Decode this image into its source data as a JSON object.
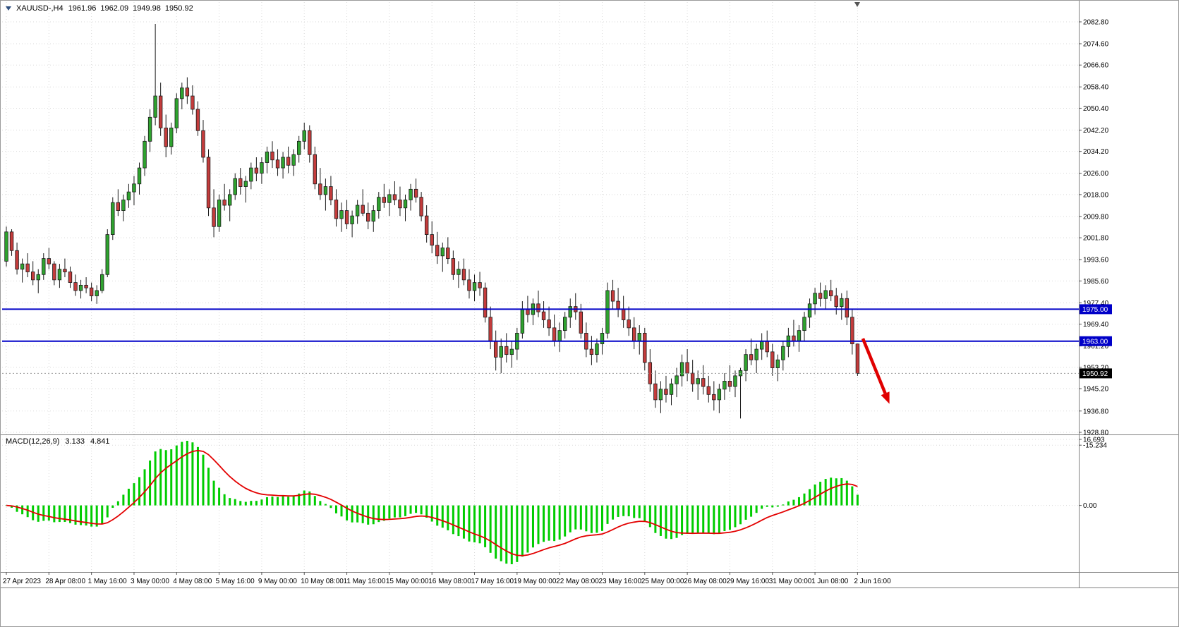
{
  "header": {
    "symbol": "XAUUSD-,H4",
    "open": "1961.96",
    "high": "1962.09",
    "low": "1949.98",
    "close": "1950.92"
  },
  "macd_header": {
    "label": "MACD(12,26,9)",
    "macd_value": "3.133",
    "signal_value": "4.841"
  },
  "colors": {
    "bull": "#2FA32F",
    "bear": "#C43C3C",
    "candle_outline": "#1A1A1A",
    "grid": "#D9D9D9",
    "hline": "#0000C8",
    "macd_histogram": "#00CC00",
    "macd_signal": "#E30000",
    "arrow": "#E00000",
    "last_price_bg": "#000000",
    "axis_text": "#000000",
    "separator": "#808080"
  },
  "chart_data": {
    "type": "candlestick",
    "symbol": "XAUUSD-",
    "timeframe": "H4",
    "title": "XAUUSD-,H4 1961.96 1962.09 1949.98 1950.92",
    "price_axis": {
      "labels": [
        "2082.80",
        "2074.60",
        "2066.60",
        "2058.40",
        "2050.40",
        "2042.20",
        "2034.20",
        "2026.00",
        "2018.00",
        "2009.80",
        "2001.80",
        "1993.60",
        "1985.60",
        "1977.40",
        "1969.40",
        "1961.20",
        "1953.20",
        "1945.20",
        "1936.80",
        "1928.80"
      ],
      "top_value": 2082.8,
      "bottom_value": 1928.8
    },
    "time_axis": {
      "labels": [
        "27 Apr 2023",
        "28 Apr 08:00",
        "1 May 16:00",
        "3 May 00:00",
        "4 May 08:00",
        "5 May 16:00",
        "9 May 00:00",
        "10 May 08:00",
        "11 May 16:00",
        "15 May 00:00",
        "16 May 08:00",
        "17 May 16:00",
        "19 May 00:00",
        "22 May 08:00",
        "23 May 16:00",
        "25 May 00:00",
        "26 May 08:00",
        "29 May 16:00",
        "31 May 00:00",
        "1 Jun 08:00",
        "2 Jun 16:00"
      ],
      "bars_per_label": 8
    },
    "horizontal_lines": [
      {
        "price": 1975.0,
        "label": "1975.00"
      },
      {
        "price": 1963.0,
        "label": "1963.00"
      }
    ],
    "last_price": {
      "value": 1950.92,
      "label": "1950.92"
    },
    "arrow_annotation": {
      "from_bar": 161,
      "from_price": 1964.0,
      "to_bar": 166,
      "to_price": 1939.5
    },
    "candles": [
      [
        1993,
        2006,
        1991,
        2004
      ],
      [
        2004,
        2005,
        1995,
        1997
      ],
      [
        1997,
        2000,
        1988,
        1990
      ],
      [
        1990,
        1994,
        1985,
        1992
      ],
      [
        1992,
        1996,
        1987,
        1989
      ],
      [
        1989,
        1993,
        1984,
        1986
      ],
      [
        1986,
        1990,
        1981,
        1988
      ],
      [
        1988,
        1996,
        1986,
        1994
      ],
      [
        1994,
        1998,
        1990,
        1992
      ],
      [
        1992,
        1993,
        1984,
        1986
      ],
      [
        1986,
        1992,
        1983,
        1990
      ],
      [
        1990,
        1994,
        1987,
        1989
      ],
      [
        1989,
        1991,
        1983,
        1985
      ],
      [
        1985,
        1988,
        1980,
        1982
      ],
      [
        1982,
        1986,
        1979,
        1984
      ],
      [
        1984,
        1987,
        1981,
        1983
      ],
      [
        1983,
        1985,
        1978,
        1980
      ],
      [
        1980,
        1984,
        1977,
        1982
      ],
      [
        1982,
        1990,
        1981,
        1988
      ],
      [
        1988,
        2005,
        1987,
        2003
      ],
      [
        2003,
        2017,
        2001,
        2015
      ],
      [
        2015,
        2020,
        2010,
        2012
      ],
      [
        2012,
        2018,
        2008,
        2016
      ],
      [
        2016,
        2022,
        2013,
        2019
      ],
      [
        2019,
        2025,
        2014,
        2022
      ],
      [
        2022,
        2030,
        2018,
        2028
      ],
      [
        2028,
        2040,
        2025,
        2038
      ],
      [
        2038,
        2050,
        2034,
        2047
      ],
      [
        2047,
        2082,
        2044,
        2055
      ],
      [
        2055,
        2060,
        2040,
        2043
      ],
      [
        2043,
        2048,
        2032,
        2036
      ],
      [
        2036,
        2045,
        2033,
        2043
      ],
      [
        2043,
        2056,
        2041,
        2054
      ],
      [
        2054,
        2060,
        2050,
        2058
      ],
      [
        2058,
        2062,
        2052,
        2055
      ],
      [
        2055,
        2059,
        2048,
        2050
      ],
      [
        2050,
        2053,
        2040,
        2042
      ],
      [
        2042,
        2046,
        2030,
        2032
      ],
      [
        2032,
        2035,
        2010,
        2013
      ],
      [
        2013,
        2020,
        2002,
        2006
      ],
      [
        2006,
        2018,
        2004,
        2016
      ],
      [
        2016,
        2022,
        2012,
        2014
      ],
      [
        2014,
        2020,
        2008,
        2018
      ],
      [
        2018,
        2026,
        2016,
        2024
      ],
      [
        2024,
        2028,
        2018,
        2021
      ],
      [
        2021,
        2025,
        2015,
        2023
      ],
      [
        2023,
        2030,
        2020,
        2028
      ],
      [
        2028,
        2032,
        2023,
        2026
      ],
      [
        2026,
        2032,
        2022,
        2030
      ],
      [
        2030,
        2036,
        2026,
        2034
      ],
      [
        2034,
        2038,
        2028,
        2031
      ],
      [
        2031,
        2035,
        2025,
        2028
      ],
      [
        2028,
        2034,
        2024,
        2032
      ],
      [
        2032,
        2036,
        2026,
        2029
      ],
      [
        2029,
        2035,
        2025,
        2033
      ],
      [
        2033,
        2040,
        2030,
        2038
      ],
      [
        2038,
        2045,
        2035,
        2042
      ],
      [
        2042,
        2044,
        2030,
        2033
      ],
      [
        2033,
        2036,
        2020,
        2022
      ],
      [
        2022,
        2028,
        2016,
        2018
      ],
      [
        2018,
        2024,
        2012,
        2021
      ],
      [
        2021,
        2025,
        2014,
        2016
      ],
      [
        2016,
        2020,
        2006,
        2009
      ],
      [
        2009,
        2015,
        2004,
        2012
      ],
      [
        2012,
        2016,
        2005,
        2007
      ],
      [
        2007,
        2012,
        2002,
        2010
      ],
      [
        2010,
        2016,
        2007,
        2014
      ],
      [
        2014,
        2020,
        2010,
        2011
      ],
      [
        2011,
        2015,
        2005,
        2008
      ],
      [
        2008,
        2014,
        2004,
        2012
      ],
      [
        2012,
        2019,
        2009,
        2017
      ],
      [
        2017,
        2022,
        2013,
        2015
      ],
      [
        2015,
        2020,
        2010,
        2018
      ],
      [
        2018,
        2023,
        2014,
        2016
      ],
      [
        2016,
        2021,
        2010,
        2013
      ],
      [
        2013,
        2018,
        2008,
        2016
      ],
      [
        2016,
        2022,
        2012,
        2020
      ],
      [
        2020,
        2024,
        2015,
        2017
      ],
      [
        2017,
        2019,
        2008,
        2010
      ],
      [
        2010,
        2014,
        2000,
        2003
      ],
      [
        2003,
        2008,
        1996,
        1999
      ],
      [
        1999,
        2004,
        1992,
        1995
      ],
      [
        1995,
        2000,
        1989,
        1998
      ],
      [
        1998,
        2002,
        1992,
        1994
      ],
      [
        1994,
        1997,
        1986,
        1988
      ],
      [
        1988,
        1993,
        1983,
        1990
      ],
      [
        1990,
        1994,
        1984,
        1986
      ],
      [
        1986,
        1990,
        1979,
        1982
      ],
      [
        1982,
        1988,
        1978,
        1985
      ],
      [
        1985,
        1989,
        1980,
        1983
      ],
      [
        1983,
        1985,
        1970,
        1972
      ],
      [
        1972,
        1976,
        1960,
        1963
      ],
      [
        1963,
        1967,
        1952,
        1957
      ],
      [
        1957,
        1964,
        1951,
        1961
      ],
      [
        1961,
        1966,
        1955,
        1958
      ],
      [
        1958,
        1963,
        1953,
        1960
      ],
      [
        1960,
        1968,
        1956,
        1966
      ],
      [
        1966,
        1978,
        1964,
        1975
      ],
      [
        1975,
        1980,
        1970,
        1973
      ],
      [
        1973,
        1979,
        1969,
        1977
      ],
      [
        1977,
        1982,
        1972,
        1974
      ],
      [
        1974,
        1978,
        1968,
        1971
      ],
      [
        1971,
        1976,
        1965,
        1968
      ],
      [
        1968,
        1973,
        1961,
        1963
      ],
      [
        1963,
        1970,
        1959,
        1967
      ],
      [
        1967,
        1974,
        1964,
        1972
      ],
      [
        1972,
        1979,
        1968,
        1976
      ],
      [
        1976,
        1981,
        1971,
        1974
      ],
      [
        1974,
        1977,
        1964,
        1966
      ],
      [
        1966,
        1970,
        1957,
        1960
      ],
      [
        1960,
        1965,
        1954,
        1958
      ],
      [
        1958,
        1964,
        1955,
        1962
      ],
      [
        1962,
        1968,
        1958,
        1966
      ],
      [
        1966,
        1985,
        1964,
        1982
      ],
      [
        1982,
        1986,
        1975,
        1978
      ],
      [
        1978,
        1983,
        1972,
        1975
      ],
      [
        1975,
        1980,
        1968,
        1971
      ],
      [
        1971,
        1976,
        1965,
        1968
      ],
      [
        1968,
        1972,
        1960,
        1963
      ],
      [
        1963,
        1969,
        1958,
        1966
      ],
      [
        1966,
        1968,
        1952,
        1955
      ],
      [
        1955,
        1960,
        1944,
        1947
      ],
      [
        1947,
        1952,
        1938,
        1941
      ],
      [
        1941,
        1948,
        1936,
        1945
      ],
      [
        1945,
        1950,
        1940,
        1943
      ],
      [
        1943,
        1949,
        1939,
        1947
      ],
      [
        1947,
        1953,
        1942,
        1950
      ],
      [
        1950,
        1958,
        1946,
        1955
      ],
      [
        1955,
        1960,
        1948,
        1951
      ],
      [
        1951,
        1956,
        1944,
        1947
      ],
      [
        1947,
        1952,
        1941,
        1949
      ],
      [
        1949,
        1954,
        1943,
        1946
      ],
      [
        1946,
        1950,
        1940,
        1943
      ],
      [
        1943,
        1948,
        1937,
        1941
      ],
      [
        1941,
        1947,
        1936,
        1945
      ],
      [
        1945,
        1951,
        1941,
        1948
      ],
      [
        1948,
        1954,
        1944,
        1946
      ],
      [
        1946,
        1952,
        1942,
        1950
      ],
      [
        1950,
        1953,
        1934,
        1952
      ],
      [
        1952,
        1960,
        1948,
        1958
      ],
      [
        1958,
        1964,
        1954,
        1956
      ],
      [
        1956,
        1962,
        1951,
        1960
      ],
      [
        1960,
        1966,
        1956,
        1963
      ],
      [
        1963,
        1967,
        1957,
        1959
      ],
      [
        1959,
        1962,
        1950,
        1953
      ],
      [
        1953,
        1958,
        1948,
        1956
      ],
      [
        1956,
        1963,
        1952,
        1961
      ],
      [
        1961,
        1968,
        1957,
        1965
      ],
      [
        1965,
        1971,
        1961,
        1963
      ],
      [
        1963,
        1969,
        1959,
        1967
      ],
      [
        1967,
        1974,
        1963,
        1972
      ],
      [
        1972,
        1979,
        1968,
        1977
      ],
      [
        1977,
        1983,
        1973,
        1981
      ],
      [
        1981,
        1985,
        1976,
        1979
      ],
      [
        1979,
        1984,
        1975,
        1982
      ],
      [
        1982,
        1986,
        1978,
        1980
      ],
      [
        1980,
        1983,
        1973,
        1976
      ],
      [
        1976,
        1981,
        1971,
        1979
      ],
      [
        1979,
        1982,
        1969,
        1972
      ],
      [
        1972,
        1975,
        1958,
        1962
      ],
      [
        1961.96,
        1962.09,
        1949.98,
        1950.92
      ]
    ],
    "macd": {
      "label": "MACD(12,26,9)",
      "parameters": [
        12,
        26,
        9
      ],
      "current_macd": 3.133,
      "current_signal": 4.841,
      "axis_labels": [
        "16.693",
        "0.00",
        "-15.234"
      ],
      "axis_values": [
        16.693,
        0,
        -15.234
      ]
    }
  }
}
